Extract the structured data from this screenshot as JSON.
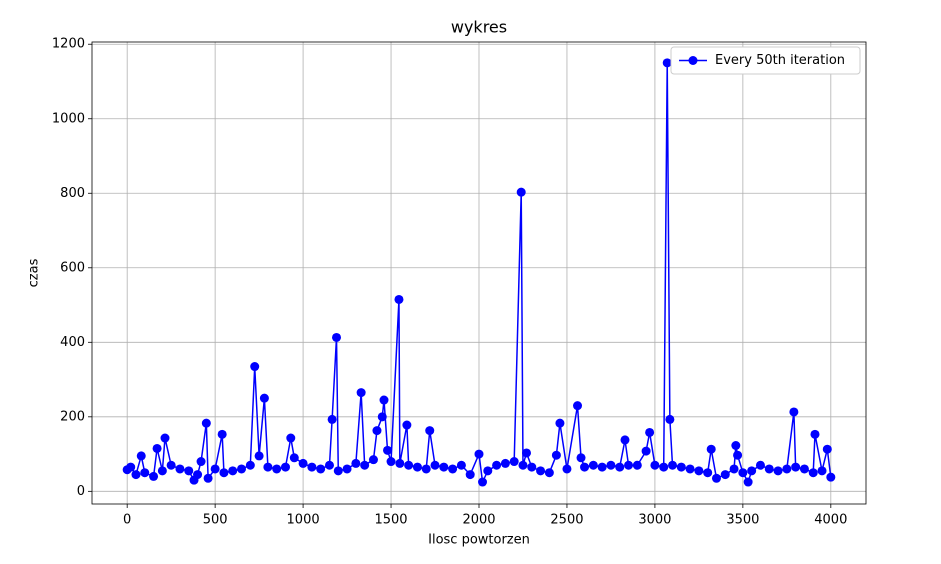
{
  "chart_data": {
    "type": "line",
    "title": "wykres",
    "x_label": "Ilosc powtorzen",
    "y_label": "czas",
    "x": [
      0,
      20,
      50,
      80,
      100,
      150,
      170,
      200,
      215,
      250,
      300,
      350,
      380,
      400,
      420,
      450,
      460,
      500,
      540,
      550,
      600,
      650,
      700,
      725,
      750,
      780,
      800,
      850,
      900,
      930,
      950,
      1000,
      1050,
      1100,
      1150,
      1165,
      1190,
      1200,
      1250,
      1300,
      1330,
      1350,
      1400,
      1420,
      1450,
      1460,
      1480,
      1500,
      1545,
      1550,
      1590,
      1600,
      1650,
      1700,
      1720,
      1750,
      1800,
      1850,
      1900,
      1950,
      2000,
      2020,
      2050,
      2100,
      2150,
      2200,
      2240,
      2250,
      2270,
      2300,
      2350,
      2400,
      2440,
      2460,
      2500,
      2560,
      2580,
      2600,
      2650,
      2700,
      2750,
      2800,
      2830,
      2850,
      2900,
      2950,
      2970,
      3000,
      3050,
      3070,
      3085,
      3100,
      3150,
      3200,
      3250,
      3300,
      3320,
      3350,
      3400,
      3450,
      3460,
      3470,
      3500,
      3530,
      3550,
      3600,
      3650,
      3700,
      3750,
      3790,
      3800,
      3850,
      3900,
      3910,
      3950,
      3980,
      4000
    ],
    "series": [
      {
        "name": "Every 50th iteration",
        "color": "#0000ff",
        "values": [
          58,
          65,
          45,
          95,
          50,
          40,
          115,
          55,
          143,
          70,
          60,
          55,
          30,
          45,
          80,
          183,
          35,
          60,
          153,
          50,
          55,
          60,
          70,
          335,
          95,
          250,
          65,
          60,
          65,
          143,
          90,
          75,
          65,
          60,
          70,
          193,
          413,
          55,
          60,
          75,
          265,
          70,
          85,
          163,
          200,
          245,
          110,
          80,
          515,
          75,
          178,
          70,
          65,
          60,
          163,
          70,
          65,
          60,
          70,
          45,
          100,
          25,
          55,
          70,
          75,
          80,
          803,
          70,
          103,
          65,
          55,
          50,
          97,
          183,
          60,
          230,
          90,
          65,
          70,
          65,
          70,
          65,
          138,
          70,
          70,
          108,
          158,
          70,
          65,
          1150,
          193,
          70,
          65,
          60,
          55,
          50,
          113,
          35,
          45,
          60,
          123,
          97,
          50,
          25,
          55,
          70,
          60,
          55,
          60,
          213,
          65,
          60,
          50,
          153,
          55,
          113,
          38
        ]
      }
    ],
    "xlim": [
      -200,
      4200
    ],
    "ylim": [
      -34,
      1206
    ],
    "xticks": [
      0,
      500,
      1000,
      1500,
      2000,
      2500,
      3000,
      3500,
      4000
    ],
    "yticks": [
      0,
      200,
      400,
      600,
      800,
      1000,
      1200
    ],
    "grid": true,
    "legend": "upper right"
  }
}
